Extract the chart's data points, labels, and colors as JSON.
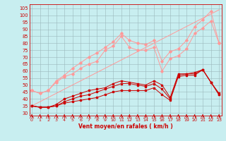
{
  "x": [
    0,
    1,
    2,
    3,
    4,
    5,
    6,
    7,
    8,
    9,
    10,
    11,
    12,
    13,
    14,
    15,
    16,
    17,
    18,
    19,
    20,
    21,
    22,
    23
  ],
  "line_dark1": [
    35,
    34,
    34,
    35,
    37,
    38,
    39,
    40,
    41,
    43,
    45,
    46,
    46,
    46,
    46,
    48,
    43,
    39,
    56,
    57,
    57,
    61,
    52,
    43
  ],
  "line_dark2": [
    35,
    34,
    34,
    35,
    38,
    40,
    42,
    43,
    45,
    47,
    49,
    51,
    51,
    50,
    49,
    51,
    47,
    40,
    57,
    58,
    58,
    61,
    52,
    43
  ],
  "line_dark3": [
    35,
    34,
    34,
    36,
    40,
    42,
    44,
    46,
    47,
    48,
    51,
    53,
    52,
    51,
    50,
    53,
    50,
    41,
    58,
    58,
    59,
    61,
    52,
    44
  ],
  "line_light1": [
    46,
    44,
    46,
    52,
    56,
    58,
    62,
    65,
    67,
    75,
    78,
    85,
    77,
    75,
    75,
    77,
    60,
    69,
    71,
    76,
    87,
    91,
    96,
    80
  ],
  "line_light2": [
    46,
    44,
    46,
    53,
    57,
    62,
    66,
    70,
    73,
    77,
    81,
    87,
    82,
    80,
    79,
    82,
    67,
    74,
    76,
    82,
    92,
    97,
    103,
    80
  ],
  "diag_light": [
    35,
    38,
    41,
    44,
    47,
    50,
    53,
    56,
    59,
    62,
    65,
    68,
    71,
    74,
    77,
    80,
    83,
    86,
    89,
    92,
    95,
    98,
    101,
    104
  ],
  "bg_color": "#c8eef0",
  "color_dark": "#cc0000",
  "color_light": "#ff9999",
  "xlabel": "Vent moyen/en rafales ( km/h )",
  "ylim": [
    28,
    108
  ],
  "xlim": [
    -0.3,
    23.3
  ],
  "yticks": [
    30,
    35,
    40,
    45,
    50,
    55,
    60,
    65,
    70,
    75,
    80,
    85,
    90,
    95,
    100,
    105
  ],
  "xticks": [
    0,
    1,
    2,
    3,
    4,
    5,
    6,
    7,
    8,
    9,
    10,
    11,
    12,
    13,
    14,
    15,
    16,
    17,
    18,
    19,
    20,
    21,
    22,
    23
  ]
}
